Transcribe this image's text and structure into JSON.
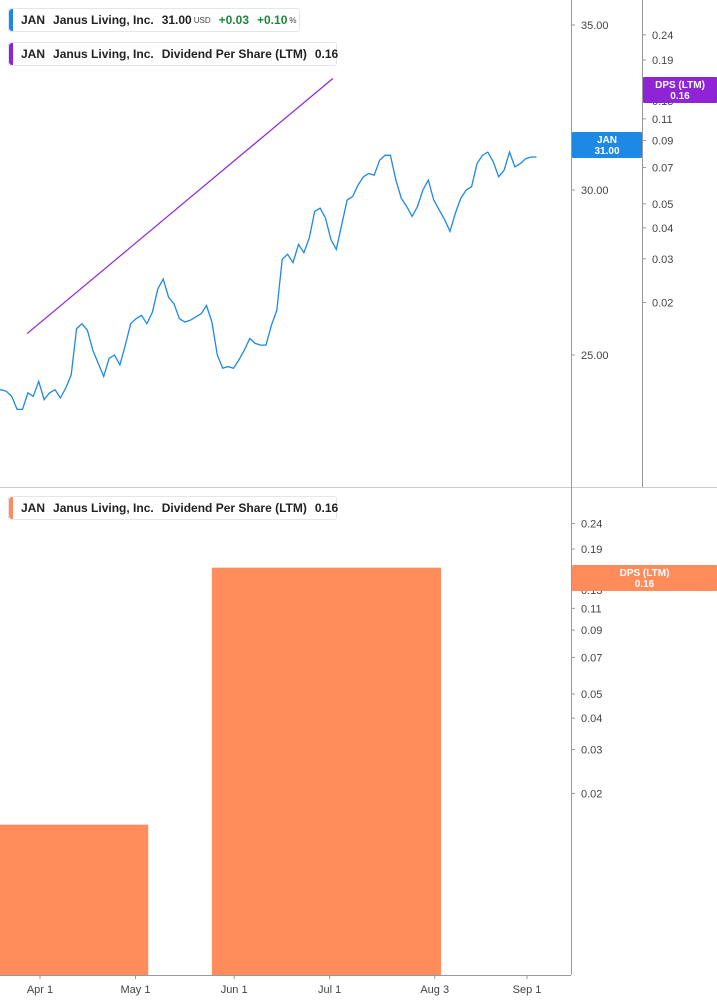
{
  "legends": {
    "price": {
      "ticker": "JAN",
      "company": "Janus Living, Inc.",
      "price": "31.00",
      "currency": "USD",
      "change": "+0.03",
      "change_pct": "+0.10",
      "pct_sign": "%"
    },
    "dps_top": {
      "ticker": "JAN",
      "company": "Janus Living, Inc.",
      "metric": "Dividend Per Share (LTM)",
      "value": "0.16"
    },
    "dps_bottom": {
      "ticker": "JAN",
      "company": "Janus Living, Inc.",
      "metric": "Dividend Per Share (LTM)",
      "value": "0.16"
    }
  },
  "colors": {
    "price_line": "#1e88e5",
    "dps_line": "#8e24d6",
    "dps_bar": "#ff8c5a",
    "axis": "#999999",
    "grid_text": "#444444"
  },
  "chart_data": [
    {
      "type": "line",
      "title": "",
      "x_axis": [
        "Apr 1",
        "May 1",
        "Jun 1",
        "Jul 1",
        "Aug 3",
        "Sep 1"
      ],
      "series": [
        {
          "name": "JAN",
          "axis": "price",
          "values": [
            23.9,
            23.95,
            23.9,
            23.75,
            23.35,
            23.35,
            23.85,
            23.75,
            24.2,
            23.65,
            23.85,
            23.95,
            23.7,
            24.0,
            24.4,
            25.8,
            25.95,
            25.75,
            25.15,
            24.75,
            24.35,
            24.9,
            25.0,
            24.7,
            25.3,
            25.95,
            26.1,
            26.2,
            25.95,
            26.3,
            27.0,
            27.3,
            26.75,
            26.55,
            26.1,
            26.0,
            26.05,
            26.15,
            26.25,
            26.5,
            26.0,
            25.0,
            24.6,
            24.65,
            24.6,
            24.85,
            25.15,
            25.5,
            25.35,
            25.3,
            25.3,
            25.9,
            26.35,
            27.9,
            28.05,
            27.8,
            28.35,
            28.1,
            28.55,
            29.35,
            29.45,
            29.15,
            28.5,
            28.2,
            28.95,
            29.7,
            29.8,
            30.15,
            30.4,
            30.5,
            30.45,
            30.9,
            31.05,
            31.05,
            30.3,
            29.75,
            29.5,
            29.2,
            29.5,
            30.0,
            30.3,
            29.7,
            29.4,
            29.1,
            28.75,
            29.3,
            29.75,
            30.0,
            30.1,
            30.8,
            31.05,
            31.15,
            30.85,
            30.4,
            30.6,
            31.15,
            30.7,
            30.8,
            30.95,
            31.0,
            31.0
          ]
        },
        {
          "name": "Dividend Per Share (LTM)",
          "axis": "dps",
          "values": [
            0.015,
            0.16
          ]
        }
      ],
      "price_axis": {
        "ticks": [
          "35.00",
          "30.00",
          "25.00"
        ],
        "min": 22.5,
        "max": 35.8
      },
      "dps_axis": {
        "ticks": [
          "0.24",
          "0.19",
          "0.14",
          "0.13",
          "0.11",
          "0.09",
          "0.07",
          "0.05",
          "0.04",
          "0.03",
          "0.02"
        ]
      },
      "tags": {
        "price": {
          "label": "JAN",
          "value": "31.00"
        },
        "dps": {
          "label": "DPS (LTM)",
          "value": "0.16"
        }
      }
    },
    {
      "type": "bar",
      "title": "",
      "categories": [
        "Apr 1",
        "May 1",
        "Jun 1",
        "Jul 1",
        "Aug 3",
        "Sep 1"
      ],
      "series": [
        {
          "name": "Dividend Per Share (LTM)",
          "bars": [
            {
              "from": "start",
              "to": "May 5",
              "value": 0.015
            },
            {
              "from": "May 25",
              "to": "Aug 5",
              "value": 0.16
            }
          ]
        }
      ],
      "y_axis": {
        "type": "log",
        "ticks": [
          "0.24",
          "0.19",
          "0.14",
          "0.13",
          "0.11",
          "0.09",
          "0.07",
          "0.05",
          "0.04",
          "0.03",
          "0.02"
        ]
      },
      "tag": {
        "label": "DPS (LTM)",
        "value": "0.16"
      }
    }
  ]
}
